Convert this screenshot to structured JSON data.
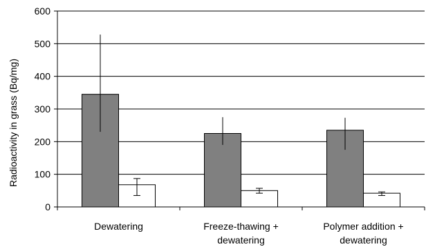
{
  "chart_data": {
    "type": "bar",
    "title": "",
    "xlabel": "",
    "ylabel": "Radioactivity in grass (Bq/mg)",
    "ylim": [
      0,
      600
    ],
    "yticks": [
      0,
      100,
      200,
      300,
      400,
      500,
      600
    ],
    "grid": true,
    "legend": "none",
    "categories": [
      [
        "Dewatering"
      ],
      [
        "Freeze-thawing +",
        "dewatering"
      ],
      [
        "Polymer addition +",
        "dewatering"
      ]
    ],
    "series": [
      {
        "fill": "#808080",
        "values": [
          345,
          225,
          235
        ],
        "error_low": [
          230,
          190,
          175
        ],
        "error_high": [
          528,
          275,
          273
        ]
      },
      {
        "fill": "#ffffff",
        "values": [
          68,
          50,
          42
        ],
        "error_low": [
          35,
          42,
          35
        ],
        "error_high": [
          87,
          57,
          46
        ]
      }
    ],
    "colors": {
      "axis": "#000000",
      "grid": "#000000",
      "bar_stroke": "#000000"
    }
  }
}
